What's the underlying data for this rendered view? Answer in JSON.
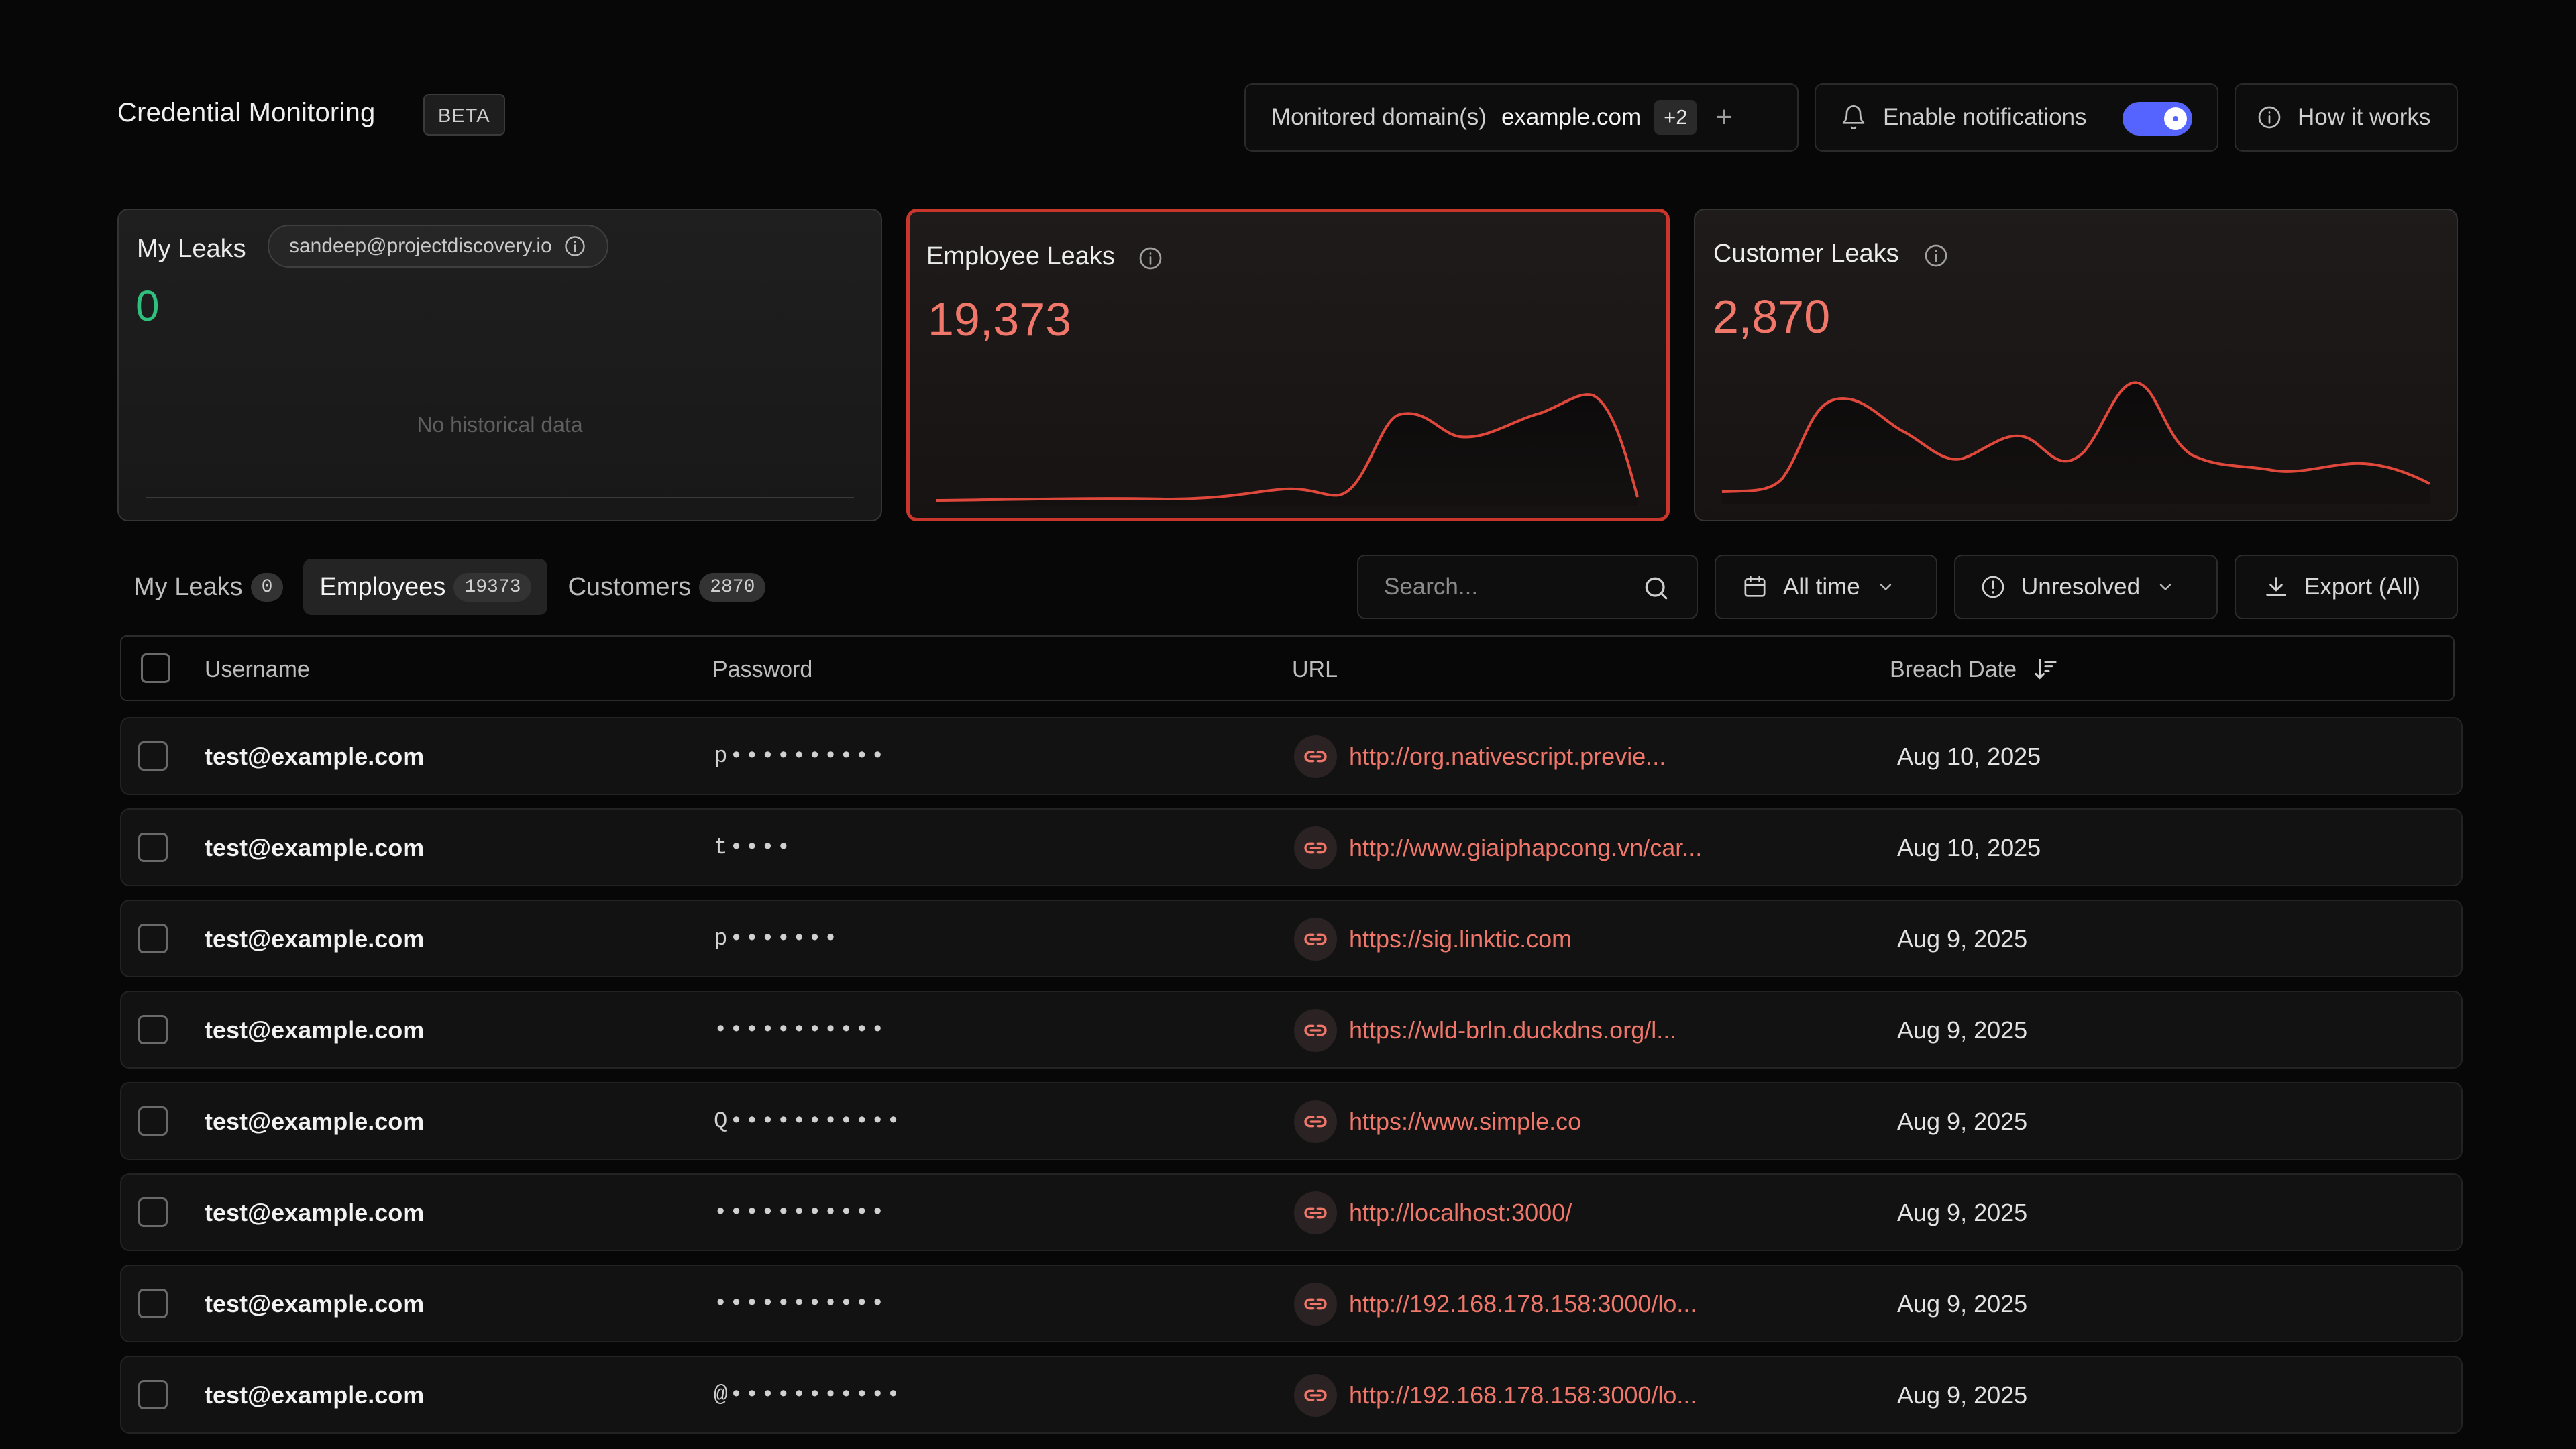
{
  "header": {
    "title": "Credential Monitoring",
    "beta_badge": "BETA",
    "domains_label": "Monitored domain(s)",
    "domains_value": "example.com",
    "domains_more": "+2",
    "add_icon": "plus-icon",
    "notifications_label": "Enable notifications",
    "notifications_enabled": true,
    "how_label": "How it works"
  },
  "cards": {
    "my_leaks": {
      "title": "My Leaks",
      "email": "sandeep@projectdiscovery.io",
      "value": "0",
      "empty_text": "No historical data"
    },
    "employee_leaks": {
      "title": "Employee Leaks",
      "value": "19,373"
    },
    "customer_leaks": {
      "title": "Customer Leaks",
      "value": "2,870"
    }
  },
  "colors": {
    "accent_red": "#c9372c",
    "leak_value": "#f0776a",
    "zero_value": "#2fbf7f",
    "toggle_on": "#5563ff"
  },
  "tabs": [
    {
      "label": "My Leaks",
      "count": "0"
    },
    {
      "label": "Employees",
      "count": "19373"
    },
    {
      "label": "Customers",
      "count": "2870"
    }
  ],
  "toolbar": {
    "search_placeholder": "Search...",
    "date_filter": "All time",
    "status_filter": "Unresolved",
    "export_label": "Export (All)"
  },
  "table": {
    "columns": [
      "Username",
      "Password",
      "URL",
      "Breach Date"
    ],
    "rows": [
      {
        "username": "test@example.com",
        "password": "p••••••••••",
        "url": "http://org.nativescript.previe...",
        "date": "Aug 10, 2025"
      },
      {
        "username": "test@example.com",
        "password": "t••••",
        "url": "http://www.giaiphapcong.vn/car...",
        "date": "Aug 10, 2025"
      },
      {
        "username": "test@example.com",
        "password": "p•••••••",
        "url": "https://sig.linktic.com",
        "date": "Aug 9, 2025"
      },
      {
        "username": "test@example.com",
        "password": "•••••••••••",
        "url": "https://wld-brln.duckdns.org/l...",
        "date": "Aug 9, 2025"
      },
      {
        "username": "test@example.com",
        "password": "Q•••••••••••",
        "url": "https://www.simple.co",
        "date": "Aug 9, 2025"
      },
      {
        "username": "test@example.com",
        "password": "•••••••••••",
        "url": "http://localhost:3000/",
        "date": "Aug 9, 2025"
      },
      {
        "username": "test@example.com",
        "password": "•••••••••••",
        "url": "http://192.168.178.158:3000/lo...",
        "date": "Aug 9, 2025"
      },
      {
        "username": "test@example.com",
        "password": "@•••••••••••",
        "url": "http://192.168.178.158:3000/lo...",
        "date": "Aug 9, 2025"
      }
    ]
  }
}
